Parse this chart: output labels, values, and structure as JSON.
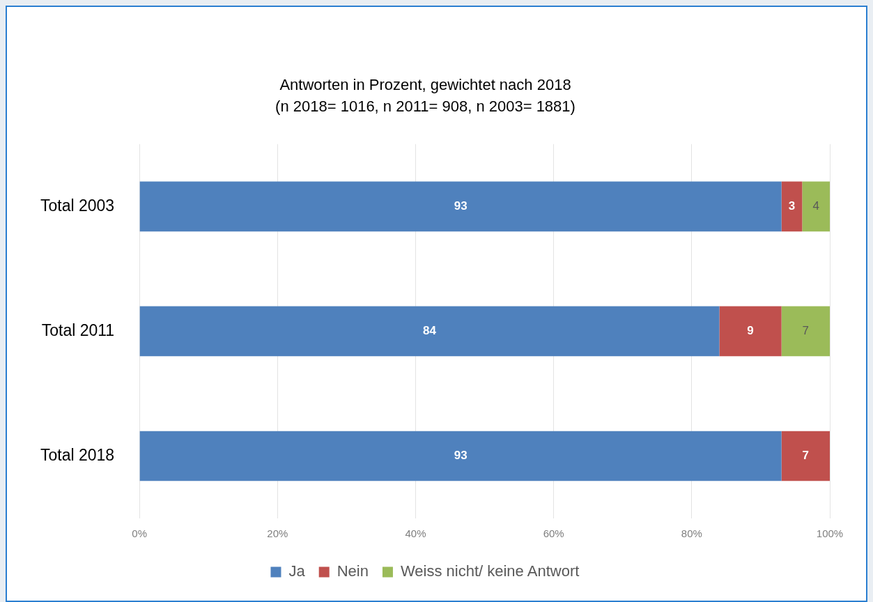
{
  "chart_data": {
    "type": "bar",
    "orientation": "horizontal",
    "stacked": true,
    "title": "Antworten in Prozent, gewichtet nach 2018",
    "subtitle": "(n 2018= 1016, n 2011= 908, n 2003= 1881)",
    "categories": [
      "Total 2003",
      "Total 2011",
      "Total 2018"
    ],
    "series": [
      {
        "name": "Ja",
        "color": "#4f81bd",
        "values": [
          93,
          84,
          93
        ]
      },
      {
        "name": "Nein",
        "color": "#c0504d",
        "values": [
          3,
          9,
          7
        ]
      },
      {
        "name": "Weiss nicht/ keine Antwort",
        "color": "#9bbb59",
        "values": [
          4,
          7,
          null
        ]
      }
    ],
    "xlim": [
      0,
      100
    ],
    "xticks": [
      {
        "value": 0,
        "label": "0%"
      },
      {
        "value": 20,
        "label": "20%"
      },
      {
        "value": 40,
        "label": "40%"
      },
      {
        "value": 60,
        "label": "60%"
      },
      {
        "value": 80,
        "label": "80%"
      },
      {
        "value": 100,
        "label": "100%"
      }
    ],
    "grid": "x",
    "legend": "bottom",
    "data_labels": true
  }
}
